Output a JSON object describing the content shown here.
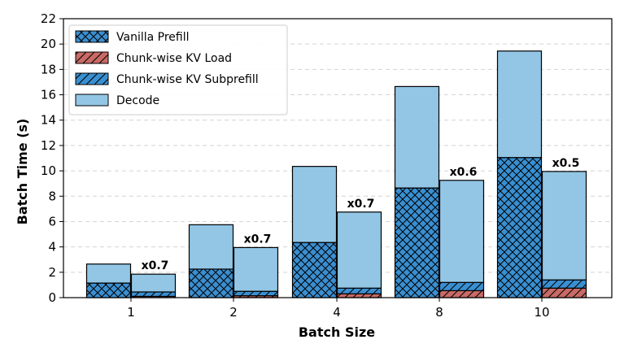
{
  "chart_data": {
    "type": "bar",
    "stacked": true,
    "xlabel": "Batch Size",
    "ylabel": "Batch Time (s)",
    "ylim": [
      0,
      22
    ],
    "yticks": [
      0,
      2,
      4,
      6,
      8,
      10,
      12,
      14,
      16,
      18,
      20,
      22
    ],
    "grid": "horizontal dashed",
    "legend_position": "top-left",
    "categories": [
      "1",
      "2",
      "4",
      "8",
      "10"
    ],
    "series": [
      {
        "name": "Vanilla Prefill",
        "color": "#3a8fd1",
        "hatch": "crosshatch",
        "group": "vanilla",
        "values": [
          1.15,
          2.25,
          4.35,
          8.65,
          11.05
        ]
      },
      {
        "name": "Chunk-wise KV Load",
        "color": "#c86a66",
        "hatch": "diagonal",
        "group": "chunk",
        "values": [
          0.1,
          0.15,
          0.3,
          0.55,
          0.75
        ]
      },
      {
        "name": "Chunk-wise KV Subprefill",
        "color": "#3a8fd1",
        "hatch": "diagonal",
        "group": "chunk",
        "values": [
          0.35,
          0.35,
          0.45,
          0.65,
          0.65
        ]
      },
      {
        "name": "Decode",
        "color": "#93c6e5",
        "hatch": "none",
        "group": "both",
        "values_vanilla": [
          1.5,
          3.5,
          6.0,
          8.0,
          8.4
        ],
        "values_chunk": [
          1.4,
          3.45,
          6.0,
          8.05,
          8.55
        ]
      }
    ],
    "annotations": [
      "x0.7",
      "x0.7",
      "x0.7",
      "x0.6",
      "x0.5"
    ]
  }
}
